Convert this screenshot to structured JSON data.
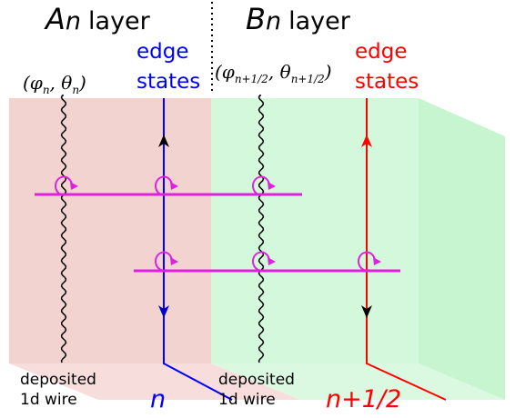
{
  "layers": [
    {
      "letter": "A",
      "index": "n",
      "word": "layer"
    },
    {
      "letter": "B",
      "index": "n",
      "word": "layer"
    }
  ],
  "edge_states": [
    {
      "lines": [
        "edge",
        "states"
      ],
      "color": "#0000ff"
    },
    {
      "lines": [
        "edge",
        "states"
      ],
      "color": "#ff0000"
    }
  ],
  "fields": [
    {
      "parts": [
        "(φ",
        "n",
        ", θ",
        "n",
        ")"
      ]
    },
    {
      "parts": [
        "(φ",
        "n+1/2",
        ", θ",
        "n+1/2",
        ")"
      ]
    }
  ],
  "wires": [
    {
      "lines": [
        "deposited",
        "1d wire"
      ]
    },
    {
      "lines": [
        "deposited",
        "1d wire"
      ]
    }
  ],
  "indices": [
    {
      "text": "n",
      "color": "#0000ff"
    },
    {
      "text": "n+1/2",
      "color": "#ff0000"
    }
  ]
}
